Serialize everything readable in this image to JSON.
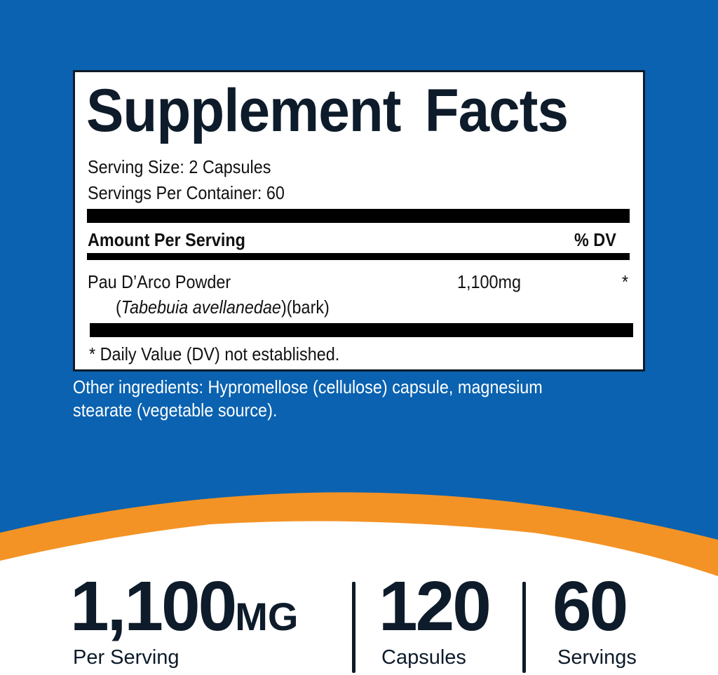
{
  "colors": {
    "background_blue": "#0a62b0",
    "accent_orange": "#f39325",
    "ink": "#0d1b2a"
  },
  "facts": {
    "title": "Supplement Facts",
    "serving_size": "Serving Size: 2 Capsules",
    "servings_per_container": "Servings Per Container: 60",
    "amount_header": "Amount Per Serving",
    "dv_header": "% DV",
    "ingredient": {
      "name": "Pau D’Arco Powder",
      "latin_open": "(",
      "latin": "Tabebuia avellanedae",
      "latin_close": ")(bark)",
      "amount": "1,100mg",
      "dv": "*"
    },
    "footnote": "* Daily Value (DV) not established."
  },
  "other_ingredients": "Other ingredients: Hypromellose (cellulose) capsule, magnesium stearate (vegetable source).",
  "stats": [
    {
      "value": "1,100",
      "unit": "MG",
      "label": "Per Serving"
    },
    {
      "value": "120",
      "label": "Capsules"
    },
    {
      "value": "60",
      "label": "Servings"
    }
  ]
}
